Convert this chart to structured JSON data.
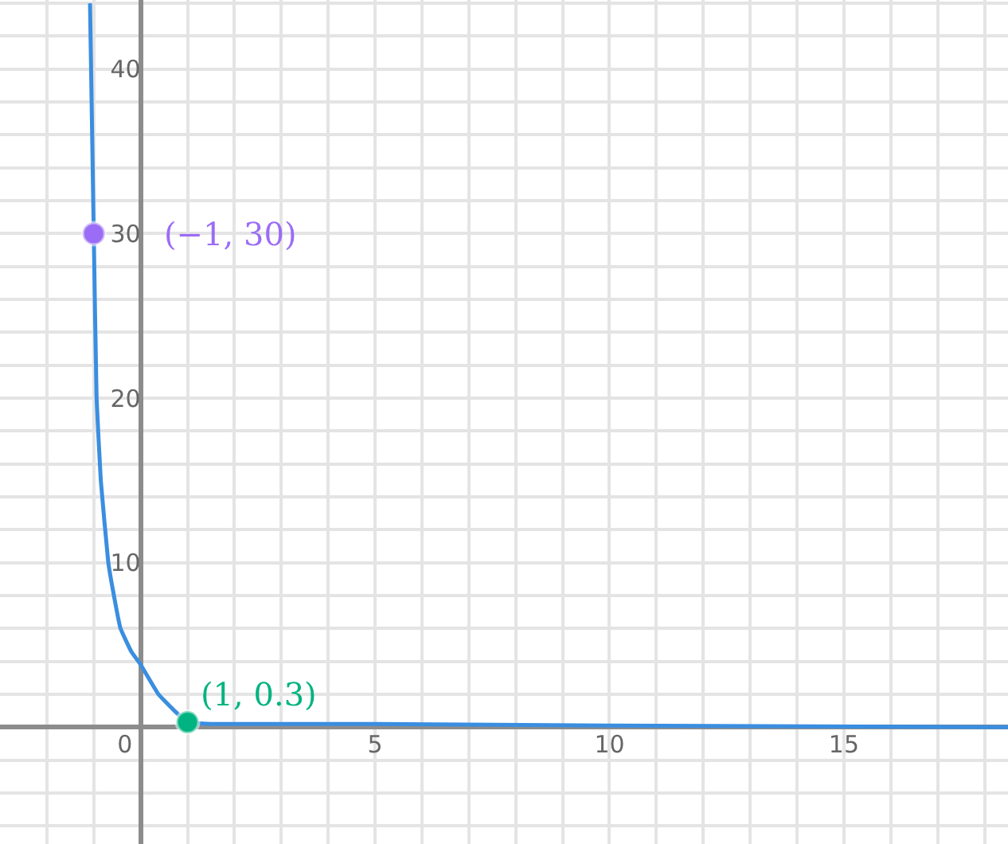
{
  "chart_data": {
    "type": "line",
    "xlim": [
      -3,
      18.5
    ],
    "ylim": [
      -7.1,
      44.2
    ],
    "xticks": [
      {
        "value": -2,
        "label": null
      },
      {
        "value": -1,
        "label": null
      },
      0,
      {
        "value": 1,
        "label": null
      },
      {
        "value": 2,
        "label": null
      },
      {
        "value": 3,
        "label": null
      },
      {
        "value": 4,
        "label": null
      },
      5,
      {
        "value": 6,
        "label": null
      },
      {
        "value": 7,
        "label": null
      },
      {
        "value": 8,
        "label": null
      },
      {
        "value": 9,
        "label": null
      },
      10,
      {
        "value": 11,
        "label": null
      },
      {
        "value": 12,
        "label": null
      },
      {
        "value": 13,
        "label": null
      },
      {
        "value": 14,
        "label": null
      },
      15,
      {
        "value": 16,
        "label": null
      },
      {
        "value": 17,
        "label": null
      },
      {
        "value": 18,
        "label": null
      }
    ],
    "yticks": [
      {
        "value": -6,
        "label": null
      },
      {
        "value": -4,
        "label": null
      },
      {
        "value": -2,
        "label": null
      },
      {
        "value": 0,
        "label": null
      },
      {
        "value": 2,
        "label": null
      },
      {
        "value": 4,
        "label": null
      },
      {
        "value": 6,
        "label": null
      },
      {
        "value": 8,
        "label": null
      },
      10,
      {
        "value": 12,
        "label": null
      },
      {
        "value": 14,
        "label": null
      },
      {
        "value": 16,
        "label": null
      },
      {
        "value": 18,
        "label": null
      },
      20,
      {
        "value": 22,
        "label": null
      },
      {
        "value": 24,
        "label": null
      },
      {
        "value": 26,
        "label": null
      },
      {
        "value": 28,
        "label": null
      },
      30,
      {
        "value": 32,
        "label": null
      },
      {
        "value": 34,
        "label": null
      },
      {
        "value": 36,
        "label": null
      },
      {
        "value": 38,
        "label": null
      },
      40,
      {
        "value": 42,
        "label": null
      },
      {
        "value": 44,
        "label": null
      }
    ],
    "grid": true,
    "series": [
      {
        "type": "line",
        "color": "#3a8ee0",
        "x": [
          -1.08,
          -1,
          -0.94,
          -0.85,
          -0.69,
          -0.57,
          -0.43,
          -0.2,
          0,
          0.38,
          0.72,
          1,
          1.5,
          2,
          5,
          10,
          18.5
        ],
        "values": [
          44,
          30,
          20,
          15,
          10,
          8,
          6,
          4.6,
          3.8,
          2,
          1,
          0.3,
          0.2,
          0.2,
          0.2,
          0.1,
          0
        ]
      },
      {
        "type": "scatter",
        "marker": "circle",
        "color": "#9b6cf6",
        "x": [
          -1
        ],
        "values": [
          30
        ]
      },
      {
        "type": "scatter",
        "marker": "circle",
        "color": "#00b380",
        "x": [
          1
        ],
        "values": [
          0.3
        ]
      }
    ],
    "annotations": [
      {
        "text": "(−1, 30)",
        "x": -1,
        "y": 30
      },
      {
        "text": "(1, 0.3)",
        "x": 1,
        "y": 0.3
      }
    ]
  }
}
